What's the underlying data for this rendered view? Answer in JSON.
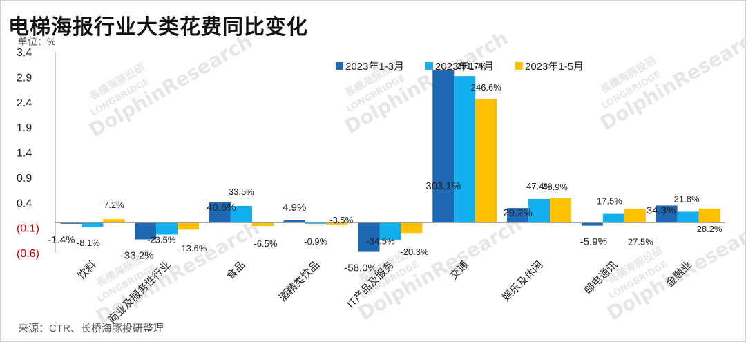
{
  "title": "电梯海报行业大类花费同比变化",
  "unit_label": "单位：%",
  "source": "来源：CTR、长桥海豚投研整理",
  "watermark": {
    "cn": "長橋海豚投研",
    "en_small": "LONGBRIDGE",
    "en_big": "DolphinResearch"
  },
  "colors": {
    "s1": "#1F68B3",
    "s2": "#13AEEF",
    "s3": "#FFC000",
    "axis": "#999999",
    "neg_tick": "#D40000"
  },
  "chart_data": {
    "type": "bar",
    "title": "电梯海报行业大类花费同比变化",
    "ylabel": "单位：%",
    "ylim": [
      -0.6,
      3.4
    ],
    "y_ticks": [
      {
        "value": 3.4,
        "label": "3.4"
      },
      {
        "value": 2.9,
        "label": "2.9"
      },
      {
        "value": 2.4,
        "label": "2.4"
      },
      {
        "value": 1.9,
        "label": "1.9"
      },
      {
        "value": 1.4,
        "label": "1.4"
      },
      {
        "value": 0.9,
        "label": "0.9"
      },
      {
        "value": 0.4,
        "label": "0.4"
      },
      {
        "value": -0.1,
        "label": "(0.1)"
      },
      {
        "value": -0.6,
        "label": "(0.6)"
      }
    ],
    "categories": [
      "饮料",
      "商业及服务性行业",
      "食品",
      "酒精类饮品",
      "IT产品及服务",
      "交通",
      "娱乐及休闲",
      "邮电通讯",
      "金融业"
    ],
    "series": [
      {
        "name": "2023年1-3月",
        "values": [
          -0.014,
          -0.332,
          0.406,
          0.049,
          -0.58,
          3.031,
          0.292,
          -0.059,
          0.343
        ],
        "labels": [
          "-1.4%",
          "-33.2%",
          "40.6%",
          "4.9%",
          "-58.0%",
          "303.1%",
          "29.2%",
          "-5.9%",
          "34.3%"
        ]
      },
      {
        "name": "2023年1-4月",
        "values": [
          -0.081,
          -0.235,
          0.335,
          -0.009,
          -0.345,
          2.917,
          0.474,
          0.175,
          0.218
        ],
        "labels": [
          "-8.1%",
          "-23.5%",
          "33.5%",
          "-0.9%",
          "-34.5%",
          "291.7%",
          "47.4%",
          "17.5%",
          "21.8%"
        ]
      },
      {
        "name": "2023年1-5月",
        "values": [
          0.072,
          -0.136,
          -0.065,
          -0.035,
          -0.203,
          2.466,
          0.489,
          0.275,
          0.282
        ],
        "labels": [
          "7.2%",
          "-13.6%",
          "-6.5%",
          "-3.5%",
          "-20.3%",
          "246.6%",
          "48.9%",
          "27.5%",
          "28.2%"
        ]
      }
    ],
    "legend": "top-right",
    "grid": false
  }
}
